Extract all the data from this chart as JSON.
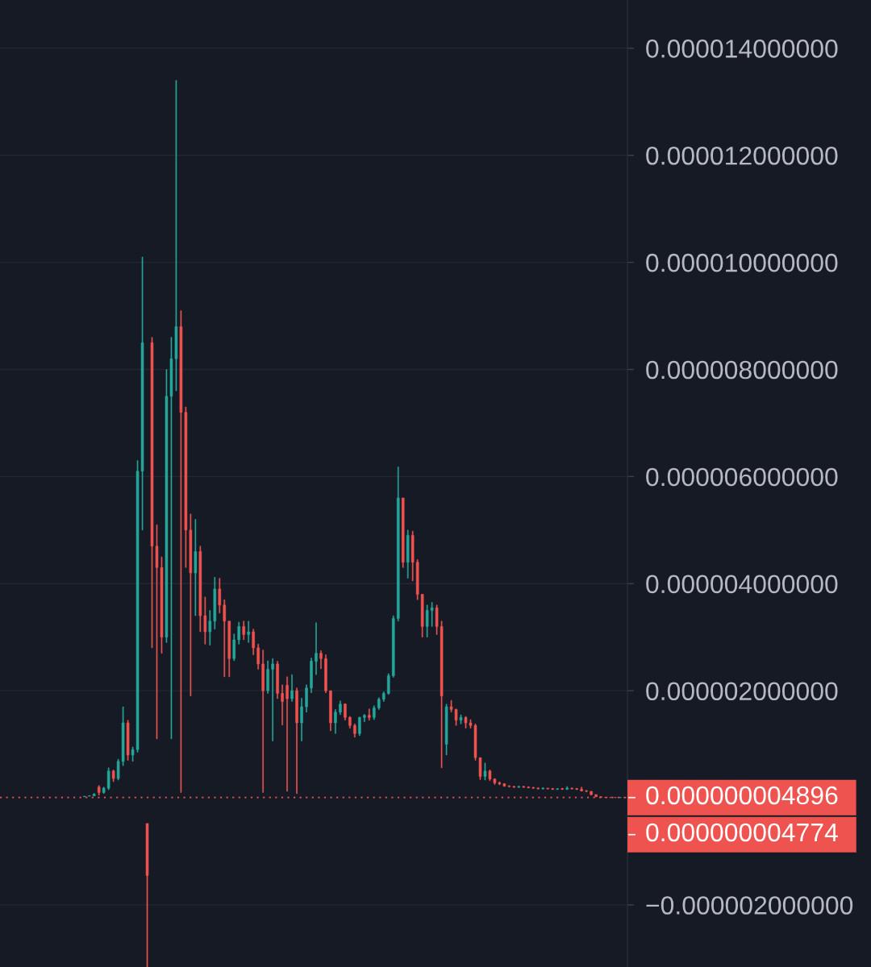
{
  "chart_data": {
    "type": "candlestick",
    "categories": [
      null,
      null,
      null,
      null,
      null,
      null,
      null,
      null,
      null,
      null,
      null,
      null,
      null,
      null,
      null,
      null,
      null,
      null,
      null,
      null,
      null,
      null,
      null,
      null,
      null,
      null,
      null,
      null,
      null,
      null,
      null,
      null,
      null,
      null,
      null,
      null,
      null,
      null,
      null,
      null,
      null,
      null,
      null,
      null,
      null,
      null,
      null,
      null,
      null,
      null,
      null,
      null,
      null,
      null,
      null,
      null,
      null,
      null,
      null,
      null,
      null,
      null,
      null,
      null,
      null,
      null,
      null,
      null,
      null,
      null,
      null,
      null,
      null,
      null,
      null,
      null,
      null,
      null,
      null,
      null,
      null,
      null,
      null,
      null,
      null,
      null,
      null,
      null,
      null,
      null,
      null,
      null,
      null,
      null,
      null,
      null,
      null,
      null,
      null,
      null,
      null,
      null,
      null,
      null,
      null,
      null,
      null,
      null,
      null,
      null,
      null,
      null,
      null,
      null,
      null,
      null,
      null,
      null,
      null,
      null,
      null,
      null,
      null,
      null,
      null,
      null,
      null,
      null,
      null,
      null
    ],
    "ohlc": [
      null,
      null,
      null,
      null,
      null,
      null,
      null,
      null,
      null,
      null,
      null,
      null,
      null,
      null,
      null,
      null,
      null,
      [
        2e-08,
        3e-08,
        2e-08,
        3e-08
      ],
      [
        3e-08,
        4e-08,
        3e-08,
        4e-08
      ],
      [
        4e-08,
        8e-08,
        3e-08,
        7e-08
      ],
      [
        2e-07,
        2.3e-07,
        5e-08,
        1e-07
      ],
      [
        1e-07,
        2e-07,
        8e-08,
        1.8e-07
      ],
      [
        1.8e-07,
        5.6e-07,
        1.5e-07,
        5e-07
      ],
      [
        5e-07,
        5.2e-07,
        3e-07,
        3.6e-07
      ],
      [
        3.6e-07,
        7.2e-07,
        3.3e-07,
        6.8e-07
      ],
      [
        6.8e-07,
        1.7e-06,
        6e-07,
        1.4e-06
      ],
      [
        1.4e-06,
        1.45e-06,
        7e-07,
        8e-07
      ],
      [
        8e-07,
        9.5e-07,
        6.8e-07,
        9e-07
      ],
      [
        9e-07,
        6.3e-06,
        8.5e-07,
        6.1e-06
      ],
      [
        6.1e-06,
        1.01e-05,
        5e-06,
        8.5e-06
      ],
      [
        -4.8e-07,
        -4.8e-07,
        -3.16e-06,
        -1.45e-06
      ],
      [
        8.5e-06,
        8.6e-06,
        2.8e-06,
        4.7e-06
      ],
      [
        4.7e-06,
        5.1e-06,
        1.1e-06,
        4.3e-06
      ],
      [
        4.3e-06,
        4.5e-06,
        2.7e-06,
        3e-06
      ],
      [
        3e-06,
        8e-06,
        2.9e-06,
        7.5e-06
      ],
      [
        7.5e-06,
        8.6e-06,
        1.1e-06,
        8.2e-06
      ],
      [
        8.2e-06,
        1.34e-05,
        7.6e-06,
        8.8e-06
      ],
      [
        8.8e-06,
        9.1e-06,
        1e-07,
        7.2e-06
      ],
      [
        7.2e-06,
        7.3e-06,
        4.3e-06,
        5e-06
      ],
      [
        5e-06,
        5.3e-06,
        1.9e-06,
        4.2e-06
      ],
      [
        4.2e-06,
        5.2e-06,
        3.4e-06,
        4.6e-06
      ],
      [
        4.6e-06,
        4.7e-06,
        3.1e-06,
        3.4e-06
      ],
      [
        3.4e-06,
        3.75e-06,
        2.87e-06,
        3.1e-06
      ],
      [
        3.1e-06,
        3.5e-06,
        2.85e-06,
        3.3e-06
      ],
      [
        3.3e-06,
        4.12e-06,
        3.15e-06,
        3.9e-06
      ],
      [
        3.9e-06,
        4.1e-06,
        3.45e-06,
        3.6e-06
      ],
      [
        3.6e-06,
        3.7e-06,
        2.26e-06,
        3.3e-06
      ],
      [
        3.3e-06,
        3.3e-06,
        2.26e-06,
        2.6e-06
      ],
      [
        2.6e-06,
        3.06e-06,
        2.56e-06,
        2.95e-06
      ],
      [
        2.95e-06,
        3.28e-06,
        2.87e-06,
        3.2e-06
      ],
      [
        3.2e-06,
        3.3e-06,
        2.95e-06,
        3.05e-06
      ],
      [
        3.05e-06,
        3.3e-06,
        2.9e-06,
        3.1e-06
      ],
      [
        3.1e-06,
        3.15e-06,
        2.67e-06,
        2.8e-06
      ],
      [
        2.8e-06,
        2.87e-06,
        2.4e-06,
        2.5e-06
      ],
      [
        2.5e-06,
        2.76e-06,
        1e-07,
        2e-06
      ],
      [
        2e-06,
        2.56e-06,
        1.95e-06,
        2.4e-06
      ],
      [
        2.4e-06,
        2.6e-06,
        1.06e-06,
        2.5e-06
      ],
      [
        2.5e-06,
        2.55e-06,
        1.85e-06,
        1.95e-06
      ],
      [
        1.95e-06,
        2.11e-06,
        1.36e-06,
        1.8e-06
      ],
      [
        2.1e-06,
        2.26e-06,
        1.2e-07,
        1.85e-06
      ],
      [
        1.85e-06,
        2.3e-06,
        1.8e-06,
        2e-06
      ],
      [
        2e-06,
        2.05e-06,
        8e-08,
        1.4e-06
      ],
      [
        1.4e-06,
        1.86e-06,
        1.06e-06,
        1.7e-06
      ],
      [
        1.7e-06,
        2.11e-06,
        1.6e-06,
        2.05e-06
      ],
      [
        2.05e-06,
        2.61e-06,
        1.96e-06,
        2.55e-06
      ],
      [
        2.55e-06,
        3.27e-06,
        2.3e-06,
        2.7e-06
      ],
      [
        2.7e-06,
        2.75e-06,
        2.41e-06,
        2.6e-06
      ],
      [
        2.6e-06,
        2.67e-06,
        1.96e-06,
        2e-06
      ],
      [
        2e-06,
        2e-06,
        1.25e-06,
        1.4e-06
      ],
      [
        1.4e-06,
        1.65e-06,
        1.2e-06,
        1.6e-06
      ],
      [
        1.6e-06,
        1.81e-06,
        1.55e-06,
        1.75e-06
      ],
      [
        1.75e-06,
        1.76e-06,
        1.45e-06,
        1.5e-06
      ],
      [
        1.5e-06,
        1.52e-06,
        1.3e-06,
        1.35e-06
      ],
      [
        1.35e-06,
        1.38e-06,
        1.13e-06,
        1.2e-06
      ],
      [
        1.2e-06,
        1.51e-06,
        1.16e-06,
        1.5e-06
      ],
      [
        1.5e-06,
        1.56e-06,
        1.42e-06,
        1.54e-06
      ],
      [
        1.54e-06,
        1.66e-06,
        1.45e-06,
        1.5e-06
      ],
      [
        1.5e-06,
        1.72e-06,
        1.46e-06,
        1.68e-06
      ],
      [
        1.68e-06,
        1.87e-06,
        1.65e-06,
        1.84e-06
      ],
      [
        1.84e-06,
        1.98e-06,
        1.8e-06,
        1.95e-06
      ],
      [
        1.95e-06,
        2.32e-06,
        1.93e-06,
        2.28e-06
      ],
      [
        2.28e-06,
        3.4e-06,
        2.25e-06,
        3.35e-06
      ],
      [
        3.35e-06,
        6.18e-06,
        3.3e-06,
        5.6e-06
      ],
      [
        5.6e-06,
        5.6e-06,
        4.3e-06,
        4.4e-06
      ],
      [
        4.4e-06,
        5e-06,
        4.1e-06,
        4.9e-06
      ],
      [
        4.9e-06,
        4.98e-06,
        4.05e-06,
        4.4e-06
      ],
      [
        4.4e-06,
        4.45e-06,
        3.7e-06,
        3.8e-06
      ],
      [
        3.8e-06,
        3.8e-06,
        3e-06,
        3.2e-06
      ],
      [
        3.2e-06,
        3.6e-06,
        3e-06,
        3.5e-06
      ],
      [
        3.5e-06,
        3.65e-06,
        3.2e-06,
        3.55e-06
      ],
      [
        3.55e-06,
        3.6e-06,
        3.05e-06,
        3.2e-06
      ],
      [
        3.2e-06,
        3.3e-06,
        5.6e-07,
        1.9e-06
      ],
      [
        1e-06,
        1.75e-06,
        8e-07,
        1.7e-06
      ],
      [
        1.7e-06,
        1.82e-06,
        1.6e-06,
        1.65e-06
      ],
      [
        1.65e-06,
        1.66e-06,
        1.35e-06,
        1.45e-06
      ],
      [
        1.45e-06,
        1.55e-06,
        1.38e-06,
        1.5e-06
      ],
      [
        1.5e-06,
        1.52e-06,
        1.3e-06,
        1.4e-06
      ],
      [
        1.4e-06,
        1.46e-06,
        1.3e-06,
        1.35e-06
      ],
      [
        1.35e-06,
        1.38e-06,
        7e-07,
        7.5e-07
      ],
      [
        7.5e-07,
        7.5e-07,
        3.4e-07,
        4e-07
      ],
      [
        4e-07,
        6.5e-07,
        3.3e-07,
        5e-07
      ],
      [
        5e-07,
        5.2e-07,
        3.2e-07,
        3.5e-07
      ],
      [
        3.5e-07,
        3.6e-07,
        2.5e-07,
        2.8e-07
      ],
      [
        2.8e-07,
        3e-07,
        2.4e-07,
        2.6e-07
      ],
      [
        2.6e-07,
        2.7e-07,
        2.1e-07,
        2.2e-07
      ],
      [
        2.2e-07,
        2.3e-07,
        2e-07,
        2.1e-07
      ],
      [
        2.1e-07,
        2.2e-07,
        1.9e-07,
        2e-07
      ],
      [
        2e-07,
        2.2e-07,
        1.9e-07,
        2.1e-07
      ],
      [
        2.1e-07,
        2.2e-07,
        1.9e-07,
        2e-07
      ],
      [
        2e-07,
        2.1e-07,
        1.8e-07,
        1.9e-07
      ],
      [
        1.9e-07,
        2e-07,
        1.7e-07,
        1.8e-07
      ],
      [
        1.8e-07,
        1.9e-07,
        1.6e-07,
        1.7e-07
      ],
      [
        1.7e-07,
        1.9e-07,
        1.6e-07,
        1.8e-07
      ],
      [
        1.8e-07,
        1.8e-07,
        1.6e-07,
        1.7e-07
      ],
      [
        1.7e-07,
        1.8e-07,
        1.5e-07,
        1.6e-07
      ],
      [
        1.6e-07,
        1.7e-07,
        1.5e-07,
        1.7e-07
      ],
      [
        1.7e-07,
        1.8e-07,
        1.5e-07,
        1.6e-07
      ],
      [
        1.6e-07,
        2.1e-07,
        1.5e-07,
        1.8e-07
      ],
      [
        1.8e-07,
        1.85e-07,
        1.6e-07,
        1.7e-07
      ],
      [
        1.7e-07,
        1.8e-07,
        1.5e-07,
        1.6e-07
      ],
      [
        1.6e-07,
        2e-07,
        1.2e-07,
        1.3e-07
      ],
      [
        1.3e-07,
        1.4e-07,
        1.1e-07,
        1.2e-07
      ],
      [
        1.2e-07,
        1.2e-07,
        5e-08,
        6e-08
      ],
      [
        6e-08,
        6e-08,
        2e-08,
        2e-08
      ],
      [
        2e-08,
        2e-08,
        6e-09,
        7e-09
      ],
      [
        7e-09,
        8e-09,
        5e-09,
        6e-09
      ],
      [
        6e-09,
        7e-09,
        5e-09,
        6e-09
      ],
      [
        6e-09,
        6e-09,
        5e-09,
        5e-09
      ],
      [
        5e-09,
        6e-09,
        4.8e-09,
        5.1e-09
      ],
      [
        5.1e-09,
        5.2e-09,
        4.7e-09,
        4.896e-09
      ]
    ],
    "colors": [
      null,
      null,
      null,
      null,
      null,
      null,
      null,
      null,
      null,
      null,
      null,
      null,
      null,
      null,
      null,
      null,
      null,
      "#26a69a",
      "#26a69a",
      "#26a69a",
      "#ef5350",
      "#26a69a",
      "#26a69a",
      "#ef5350",
      "#26a69a",
      "#26a69a",
      "#ef5350",
      "#26a69a",
      "#26a69a",
      "#26a69a",
      "#ef5350",
      "#ef5350",
      "#ef5350",
      "#ef5350",
      "#26a69a",
      "#26a69a",
      "#26a69a",
      "#ef5350",
      "#ef5350",
      "#ef5350",
      "#26a69a",
      "#ef5350",
      "#ef5350",
      "#26a69a",
      "#26a69a",
      "#ef5350",
      "#ef5350",
      "#ef5350",
      "#26a69a",
      "#26a69a",
      "#ef5350",
      "#26a69a",
      "#ef5350",
      "#ef5350",
      "#ef5350",
      "#26a69a",
      "#26a69a",
      "#ef5350",
      "#ef5350",
      "#ef5350",
      "#26a69a",
      "#ef5350",
      "#26a69a",
      "#26a69a",
      "#26a69a",
      "#26a69a",
      "#ef5350",
      "#ef5350",
      "#ef5350",
      "#26a69a",
      "#26a69a",
      "#ef5350",
      "#ef5350",
      "#ef5350",
      "#26a69a",
      "#26a69a",
      "#ef5350",
      "#26a69a",
      "#26a69a",
      "#26a69a",
      "#26a69a",
      "#26a69a",
      "#26a69a",
      "#ef5350",
      "#26a69a",
      "#ef5350",
      "#ef5350",
      "#ef5350",
      "#26a69a",
      "#26a69a",
      "#ef5350",
      "#ef5350",
      "#26a69a",
      "#ef5350",
      "#ef5350",
      "#26a69a",
      "#ef5350",
      "#ef5350",
      "#ef5350",
      "#ef5350",
      "#26a69a",
      "#ef5350",
      "#ef5350",
      "#ef5350",
      "#ef5350",
      "#ef5350",
      "#ef5350",
      "#26a69a",
      "#ef5350",
      "#ef5350",
      "#ef5350",
      "#ef5350",
      "#26a69a",
      "#ef5350",
      "#ef5350",
      "#26a69a",
      "#ef5350",
      "#26a69a",
      "#ef5350",
      "#ef5350",
      "#ef5350",
      "#ef5350",
      "#ef5350",
      "#ef5350",
      "#ef5350",
      "#ef5350",
      "#ef5350",
      "#ef5350",
      "#26a69a",
      "#ef5350"
    ],
    "ylim": [
      -3.16e-06,
      1.49e-05
    ],
    "yticks": [
      {
        "value": 1.4e-05,
        "label": "0.000014000000"
      },
      {
        "value": 1.2e-05,
        "label": "0.000012000000"
      },
      {
        "value": 1e-05,
        "label": "0.000010000000"
      },
      {
        "value": 8e-06,
        "label": "0.000008000000"
      },
      {
        "value": 6e-06,
        "label": "0.000006000000"
      },
      {
        "value": 4e-06,
        "label": "0.000004000000"
      },
      {
        "value": 2e-06,
        "label": "0.000002000000"
      },
      {
        "value": -2e-06,
        "label": "−0.000002000000"
      }
    ],
    "ref_lines": [
      {
        "axis": "y",
        "value": 4.896e-09,
        "label": "0.000000004896",
        "color": "#ef5350",
        "line_style": "dotted"
      }
    ],
    "annotations": [
      "0.000000004774"
    ],
    "grid": "y",
    "tick_labels": "y"
  }
}
